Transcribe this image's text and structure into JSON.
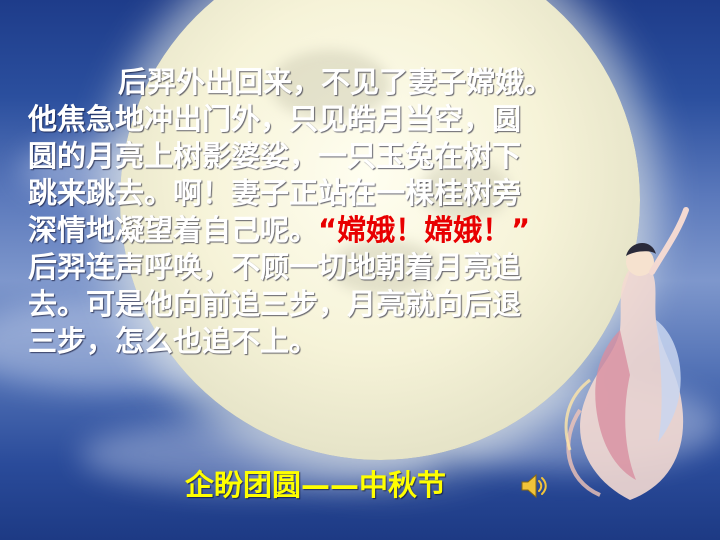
{
  "passage": {
    "line1": "后羿外出回来，不见了妻子嫦娥。",
    "line2": "他焦急地冲出门外，只见皓月当空，圆",
    "line3": "圆的月亮上树影婆娑，一只玉兔在树下",
    "line4": "跳来跳去。啊！妻子正站在一棵桂树旁",
    "line5_a": "深情地凝望着自己呢。",
    "line5_b": "“嫦娥！嫦娥！”",
    "line6": "后羿连声呼唤，不顾一切地朝着月亮追",
    "line7": "去。可是他向前追三步，月亮就向后退",
    "line8": "三步，怎么也追不上。"
  },
  "footer": {
    "title": "企盼团圆——中秋节"
  },
  "icons": {
    "sound": "speaker-icon",
    "figure": "change-e-figure-icon"
  },
  "colors": {
    "text": "#ffffff",
    "quote": "#e80000",
    "title": "#ffff00",
    "sky": "#2b4f9e",
    "moon": "#f6f3d8"
  }
}
